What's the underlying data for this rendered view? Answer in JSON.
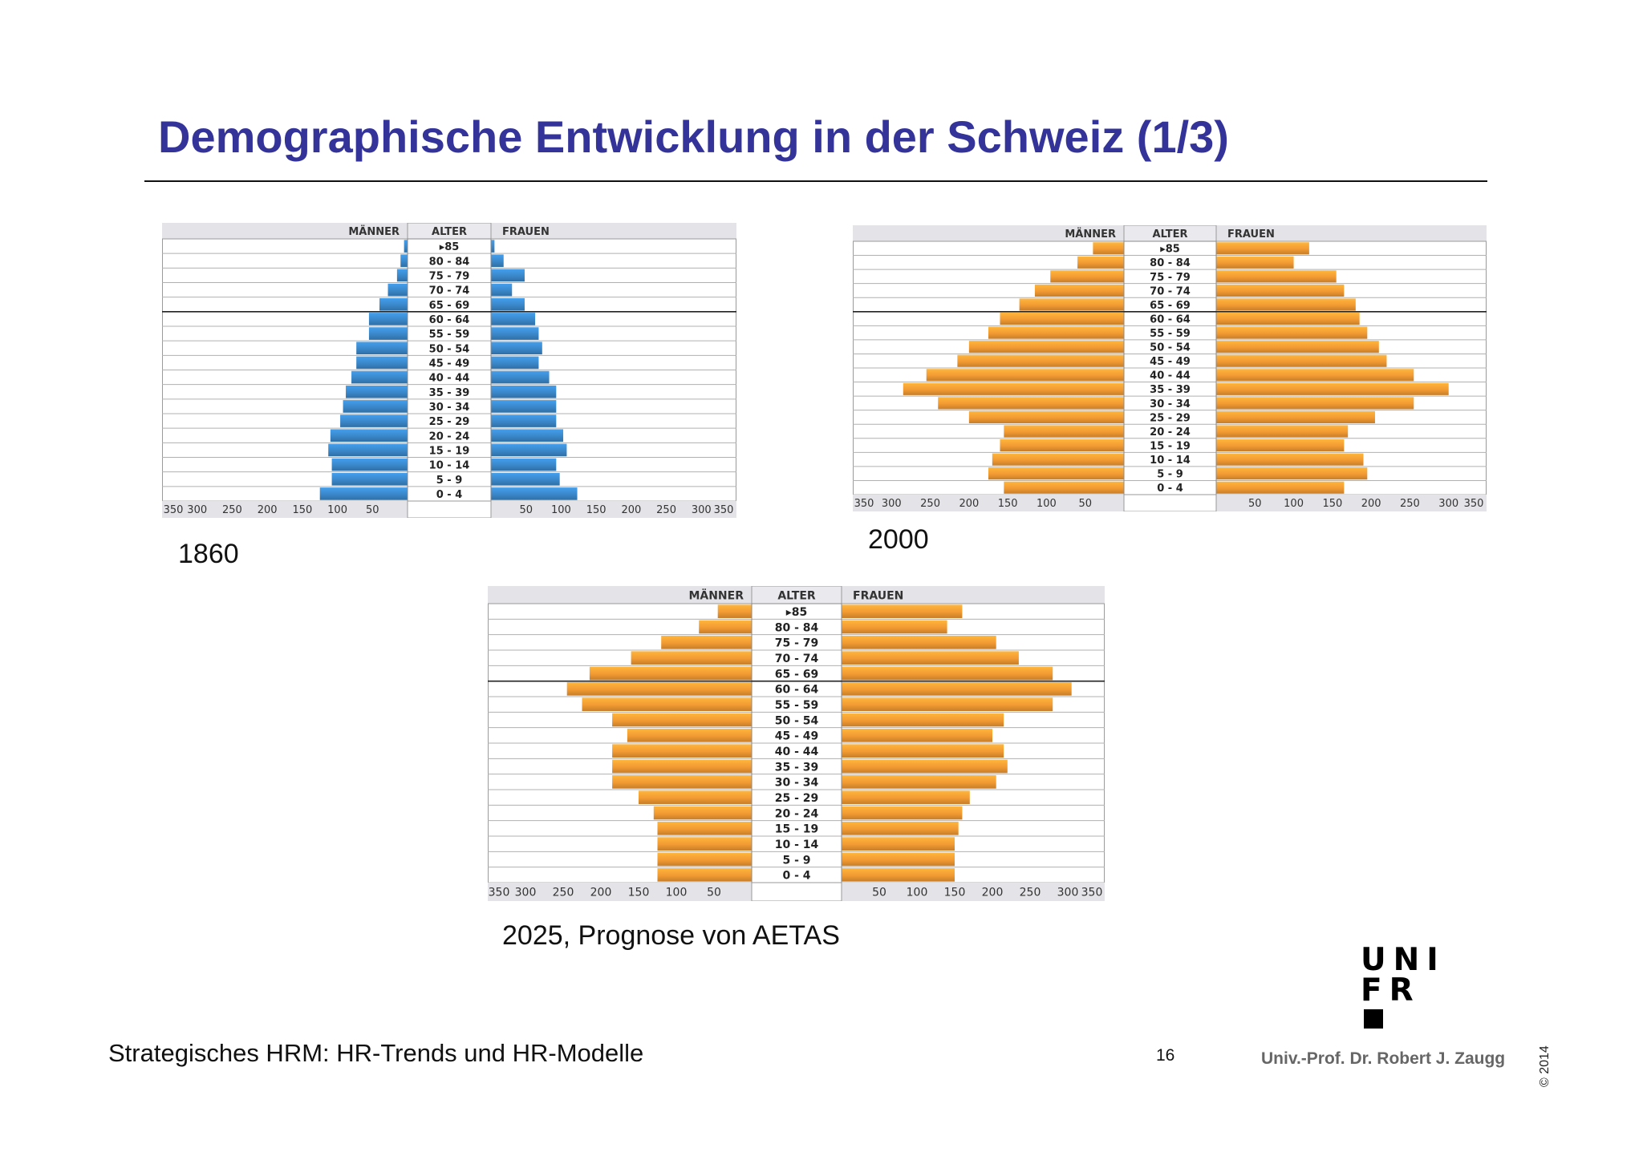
{
  "title": "Demographische Entwicklung in der Schweiz (1/3)",
  "footer": {
    "course": "Strategisches HRM: HR-Trends und HR-Modelle",
    "page": "16",
    "author": "Univ.-Prof. Dr. Robert J. Zaugg",
    "copyright": "© 2014"
  },
  "logo": {
    "line1": "UNI",
    "line2": "FR"
  },
  "colors": {
    "title": "#33339a",
    "year_1860": "#3a87c9",
    "year_2000": "#f29a33",
    "year_2025": "#f29a33"
  },
  "chart_data": [
    {
      "type": "bar",
      "caption": "1860",
      "header_left": "MÄNNER",
      "header_center": "ALTER",
      "header_right": "FRAUEN",
      "categories": [
        "▸85",
        "80 - 84",
        "75 - 79",
        "70 - 74",
        "65 - 69",
        "60 - 64",
        "55 - 59",
        "50 - 54",
        "45 - 49",
        "40 - 44",
        "35 - 39",
        "30 - 34",
        "25 - 29",
        "20 - 24",
        "15 - 19",
        "10 - 14",
        "5 - 9",
        "0 - 4"
      ],
      "axis_ticks": [
        350,
        300,
        250,
        200,
        150,
        100,
        50
      ],
      "axis_max": 350,
      "separator_after": "65 - 69",
      "series": [
        {
          "name": "MÄNNER",
          "values": [
            5,
            10,
            15,
            28,
            40,
            55,
            55,
            73,
            73,
            80,
            88,
            92,
            96,
            110,
            113,
            108,
            108,
            125
          ]
        },
        {
          "name": "FRAUEN",
          "values": [
            5,
            18,
            48,
            30,
            48,
            63,
            68,
            73,
            68,
            83,
            93,
            93,
            93,
            103,
            108,
            93,
            98,
            123
          ]
        }
      ]
    },
    {
      "type": "bar",
      "caption": "2000",
      "header_left": "MÄNNER",
      "header_center": "ALTER",
      "header_right": "FRAUEN",
      "categories": [
        "▸85",
        "80 - 84",
        "75 - 79",
        "70 - 74",
        "65 - 69",
        "60 - 64",
        "55 - 59",
        "50 - 54",
        "45 - 49",
        "40 - 44",
        "35 - 39",
        "30 - 34",
        "25 - 29",
        "20 - 24",
        "15 - 19",
        "10 - 14",
        "5 - 9",
        "0 - 4"
      ],
      "axis_ticks": [
        350,
        300,
        250,
        200,
        150,
        100,
        50
      ],
      "axis_max": 350,
      "separator_after": "65 - 69",
      "series": [
        {
          "name": "MÄNNER",
          "values": [
            40,
            60,
            95,
            115,
            135,
            160,
            175,
            200,
            215,
            255,
            285,
            240,
            200,
            155,
            160,
            170,
            175,
            155
          ]
        },
        {
          "name": "FRAUEN",
          "values": [
            120,
            100,
            155,
            165,
            180,
            185,
            195,
            210,
            220,
            255,
            300,
            255,
            205,
            170,
            165,
            190,
            195,
            165
          ]
        }
      ]
    },
    {
      "type": "bar",
      "caption": "2025, Prognose von AETAS",
      "header_left": "MÄNNER",
      "header_center": "ALTER",
      "header_right": "FRAUEN",
      "categories": [
        "▸85",
        "80 - 84",
        "75 - 79",
        "70 - 74",
        "65 - 69",
        "60 - 64",
        "55 - 59",
        "50 - 54",
        "45 - 49",
        "40 - 44",
        "35 - 39",
        "30 - 34",
        "25 - 29",
        "20 - 24",
        "15 - 19",
        "10 - 14",
        "5 - 9",
        "0 - 4"
      ],
      "axis_ticks": [
        350,
        300,
        250,
        200,
        150,
        100,
        50
      ],
      "axis_max": 350,
      "separator_after": "65 - 69",
      "series": [
        {
          "name": "MÄNNER",
          "values": [
            45,
            70,
            120,
            160,
            215,
            245,
            225,
            185,
            165,
            185,
            185,
            185,
            150,
            130,
            125,
            125,
            125,
            125
          ]
        },
        {
          "name": "FRAUEN",
          "values": [
            160,
            140,
            205,
            235,
            280,
            305,
            280,
            215,
            200,
            215,
            220,
            205,
            170,
            160,
            155,
            150,
            150,
            150
          ]
        }
      ]
    }
  ]
}
